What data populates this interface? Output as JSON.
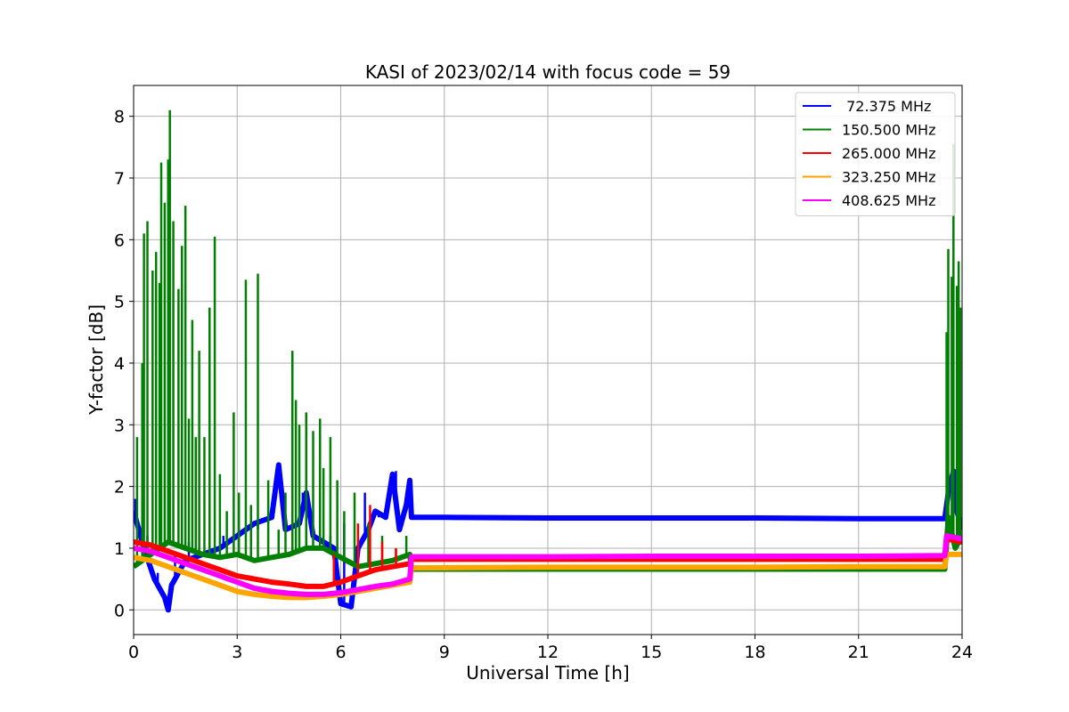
{
  "chart_data": {
    "type": "line",
    "title": "KASI of 2023/02/14 with focus code = 59",
    "xlabel": "Universal Time [h]",
    "ylabel": "Y-factor [dB]",
    "xlim": [
      0,
      24
    ],
    "ylim": [
      -0.4,
      8.5
    ],
    "xticks": [
      0,
      3,
      6,
      9,
      12,
      15,
      18,
      21,
      24
    ],
    "yticks": [
      0,
      1,
      2,
      3,
      4,
      5,
      6,
      7,
      8
    ],
    "grid": true,
    "legend_position": "top-right",
    "series": [
      {
        "name": " 72.375 MHz",
        "color": "#0000ff",
        "points": [
          [
            0,
            1.6
          ],
          [
            0.3,
            1.0
          ],
          [
            0.6,
            0.5
          ],
          [
            0.9,
            0.2
          ],
          [
            1.0,
            0.0
          ],
          [
            1.1,
            0.4
          ],
          [
            1.5,
            0.8
          ],
          [
            2.0,
            0.9
          ],
          [
            2.5,
            1.0
          ],
          [
            3.0,
            1.2
          ],
          [
            3.5,
            1.4
          ],
          [
            4.0,
            1.5
          ],
          [
            4.2,
            2.35
          ],
          [
            4.4,
            1.3
          ],
          [
            4.8,
            1.4
          ],
          [
            5.0,
            1.9
          ],
          [
            5.2,
            1.2
          ],
          [
            5.5,
            1.1
          ],
          [
            5.8,
            1.0
          ],
          [
            6.0,
            0.1
          ],
          [
            6.3,
            0.05
          ],
          [
            6.5,
            1.0
          ],
          [
            6.8,
            1.3
          ],
          [
            7.0,
            1.6
          ],
          [
            7.3,
            1.5
          ],
          [
            7.5,
            2.2
          ],
          [
            7.7,
            1.3
          ],
          [
            7.9,
            1.7
          ],
          [
            8.0,
            2.1
          ],
          [
            8.05,
            1.5
          ],
          [
            9,
            1.5
          ],
          [
            12,
            1.49
          ],
          [
            15,
            1.49
          ],
          [
            18,
            1.49
          ],
          [
            21,
            1.48
          ],
          [
            23.5,
            1.48
          ],
          [
            23.6,
            1.9
          ],
          [
            23.75,
            2.25
          ],
          [
            23.85,
            1.6
          ],
          [
            24,
            1.3
          ]
        ],
        "spikes": [
          [
            0.05,
            1.8
          ],
          [
            0.4,
            1.2
          ],
          [
            0.7,
            0.6
          ],
          [
            1.2,
            0.9
          ],
          [
            1.6,
            1.1
          ],
          [
            2.2,
            1.0
          ],
          [
            2.6,
            1.2
          ],
          [
            3.2,
            1.25
          ],
          [
            3.6,
            1.3
          ],
          [
            3.9,
            1.5
          ],
          [
            4.1,
            2.0
          ],
          [
            4.2,
            2.35
          ],
          [
            4.6,
            1.4
          ],
          [
            4.9,
            1.9
          ],
          [
            5.1,
            1.6
          ],
          [
            5.4,
            1.3
          ],
          [
            5.7,
            1.2
          ],
          [
            6.1,
            1.4
          ],
          [
            6.7,
            1.9
          ],
          [
            7.1,
            1.5
          ],
          [
            7.4,
            2.0
          ],
          [
            7.6,
            2.25
          ],
          [
            7.8,
            1.4
          ],
          [
            8.0,
            2.1
          ],
          [
            23.55,
            1.85
          ],
          [
            23.7,
            2.25
          ],
          [
            23.9,
            1.5
          ]
        ]
      },
      {
        "name": "150.500 MHz",
        "color": "#008000",
        "points": [
          [
            0,
            0.7
          ],
          [
            0.5,
            0.9
          ],
          [
            1.0,
            1.1
          ],
          [
            1.5,
            1.0
          ],
          [
            2.0,
            0.9
          ],
          [
            2.5,
            0.85
          ],
          [
            3.0,
            0.9
          ],
          [
            3.5,
            0.8
          ],
          [
            4.0,
            0.85
          ],
          [
            4.5,
            0.9
          ],
          [
            5.0,
            1.0
          ],
          [
            5.5,
            1.0
          ],
          [
            6.0,
            0.85
          ],
          [
            6.5,
            0.7
          ],
          [
            7.0,
            0.75
          ],
          [
            7.5,
            0.8
          ],
          [
            8.0,
            0.9
          ],
          [
            8.05,
            0.66
          ],
          [
            9,
            0.66
          ],
          [
            12,
            0.66
          ],
          [
            15,
            0.66
          ],
          [
            18,
            0.66
          ],
          [
            21,
            0.66
          ],
          [
            23.5,
            0.66
          ],
          [
            23.6,
            1.5
          ],
          [
            23.8,
            1.0
          ],
          [
            24,
            1.2
          ]
        ],
        "spikes": [
          [
            0.1,
            2.8
          ],
          [
            0.25,
            4.0
          ],
          [
            0.3,
            6.1
          ],
          [
            0.4,
            6.3
          ],
          [
            0.55,
            5.5
          ],
          [
            0.65,
            5.8
          ],
          [
            0.75,
            5.3
          ],
          [
            0.8,
            7.25
          ],
          [
            0.9,
            6.6
          ],
          [
            1.0,
            7.3
          ],
          [
            1.05,
            8.1
          ],
          [
            1.15,
            6.3
          ],
          [
            1.3,
            5.2
          ],
          [
            1.4,
            5.9
          ],
          [
            1.5,
            6.55
          ],
          [
            1.6,
            3.1
          ],
          [
            1.7,
            4.7
          ],
          [
            1.8,
            2.8
          ],
          [
            1.9,
            4.2
          ],
          [
            2.05,
            2.8
          ],
          [
            2.2,
            4.9
          ],
          [
            2.35,
            6.05
          ],
          [
            2.5,
            2.2
          ],
          [
            2.7,
            1.6
          ],
          [
            2.9,
            3.2
          ],
          [
            3.05,
            1.9
          ],
          [
            3.25,
            5.35
          ],
          [
            3.4,
            1.7
          ],
          [
            3.6,
            5.45
          ],
          [
            3.9,
            2.1
          ],
          [
            4.2,
            1.3
          ],
          [
            4.4,
            1.9
          ],
          [
            4.6,
            4.2
          ],
          [
            4.7,
            3.4
          ],
          [
            4.8,
            3.0
          ],
          [
            5.0,
            3.2
          ],
          [
            5.2,
            2.9
          ],
          [
            5.4,
            3.1
          ],
          [
            5.5,
            2.3
          ],
          [
            5.7,
            2.8
          ],
          [
            5.9,
            2.1
          ],
          [
            6.1,
            1.6
          ],
          [
            6.4,
            1.9
          ],
          [
            6.8,
            1.4
          ],
          [
            7.2,
            1.2
          ],
          [
            7.6,
            1.0
          ],
          [
            7.9,
            1.2
          ],
          [
            23.55,
            4.5
          ],
          [
            23.6,
            5.85
          ],
          [
            23.7,
            5.4
          ],
          [
            23.75,
            7.55
          ],
          [
            23.85,
            5.25
          ],
          [
            23.9,
            5.65
          ],
          [
            23.95,
            4.9
          ]
        ]
      },
      {
        "name": "265.000 MHz",
        "color": "#ff0000",
        "points": [
          [
            0,
            1.1
          ],
          [
            0.5,
            1.05
          ],
          [
            1.0,
            0.95
          ],
          [
            1.5,
            0.85
          ],
          [
            2.0,
            0.75
          ],
          [
            2.5,
            0.65
          ],
          [
            3.0,
            0.55
          ],
          [
            3.5,
            0.5
          ],
          [
            4.0,
            0.45
          ],
          [
            4.5,
            0.42
          ],
          [
            5.0,
            0.38
          ],
          [
            5.5,
            0.38
          ],
          [
            6.0,
            0.45
          ],
          [
            6.5,
            0.55
          ],
          [
            7.0,
            0.65
          ],
          [
            7.5,
            0.7
          ],
          [
            8.0,
            0.75
          ],
          [
            8.05,
            0.82
          ],
          [
            12,
            0.82
          ],
          [
            15,
            0.82
          ],
          [
            18,
            0.82
          ],
          [
            21,
            0.82
          ],
          [
            23.5,
            0.82
          ],
          [
            23.55,
            1.15
          ],
          [
            24,
            1.1
          ]
        ],
        "spikes": [
          [
            6.5,
            1.4
          ],
          [
            6.85,
            1.7
          ],
          [
            7.2,
            1.1
          ],
          [
            7.6,
            1.0
          ],
          [
            5.8,
            0.9
          ]
        ]
      },
      {
        "name": "323.250 MHz",
        "color": "#ffa500",
        "points": [
          [
            0,
            0.85
          ],
          [
            0.5,
            0.8
          ],
          [
            1.0,
            0.7
          ],
          [
            1.5,
            0.6
          ],
          [
            2.0,
            0.5
          ],
          [
            2.5,
            0.4
          ],
          [
            3.0,
            0.3
          ],
          [
            3.5,
            0.25
          ],
          [
            4.0,
            0.22
          ],
          [
            4.5,
            0.2
          ],
          [
            5.0,
            0.2
          ],
          [
            5.5,
            0.22
          ],
          [
            6.0,
            0.25
          ],
          [
            6.5,
            0.3
          ],
          [
            7.0,
            0.35
          ],
          [
            7.5,
            0.4
          ],
          [
            8.0,
            0.45
          ],
          [
            8.05,
            0.68
          ],
          [
            12,
            0.69
          ],
          [
            15,
            0.69
          ],
          [
            18,
            0.69
          ],
          [
            21,
            0.7
          ],
          [
            23.5,
            0.7
          ],
          [
            23.55,
            0.9
          ],
          [
            24,
            0.9
          ]
        ],
        "spikes": []
      },
      {
        "name": "408.625 MHz",
        "color": "#ff00ff",
        "points": [
          [
            0,
            1.0
          ],
          [
            0.5,
            0.95
          ],
          [
            1.0,
            0.85
          ],
          [
            1.5,
            0.75
          ],
          [
            2.0,
            0.65
          ],
          [
            2.5,
            0.55
          ],
          [
            3.0,
            0.45
          ],
          [
            3.5,
            0.35
          ],
          [
            4.0,
            0.3
          ],
          [
            4.5,
            0.27
          ],
          [
            5.0,
            0.25
          ],
          [
            5.5,
            0.25
          ],
          [
            6.0,
            0.28
          ],
          [
            6.5,
            0.33
          ],
          [
            7.0,
            0.38
          ],
          [
            7.5,
            0.42
          ],
          [
            8.0,
            0.5
          ],
          [
            8.05,
            0.86
          ],
          [
            12,
            0.86
          ],
          [
            15,
            0.87
          ],
          [
            18,
            0.87
          ],
          [
            21,
            0.87
          ],
          [
            23.5,
            0.88
          ],
          [
            23.55,
            1.2
          ],
          [
            24,
            1.15
          ]
        ],
        "spikes": []
      }
    ]
  }
}
